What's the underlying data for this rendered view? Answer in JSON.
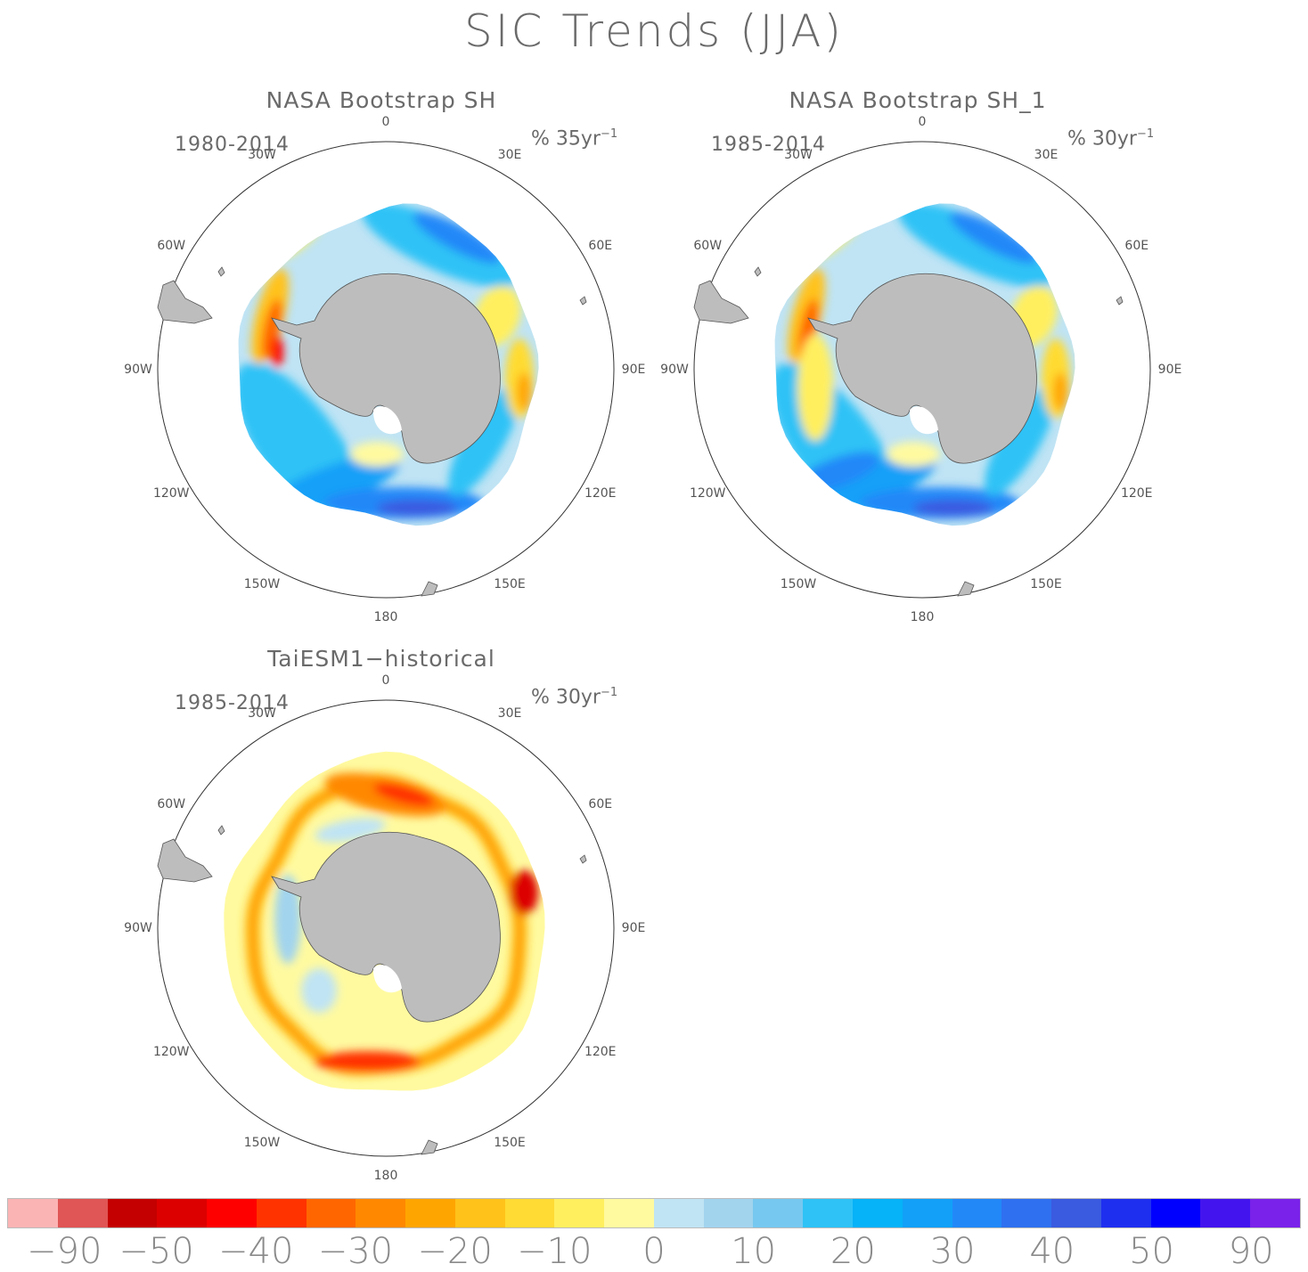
{
  "title": "SIC Trends (JJA)",
  "panels": [
    {
      "title": "NASA Bootstrap SH",
      "period": "1980-2014",
      "units_prefix": "% 35yr",
      "units_sup": "−1",
      "pattern": "obs1"
    },
    {
      "title": "NASA Bootstrap SH_1",
      "period": "1985-2014",
      "units_prefix": "% 30yr",
      "units_sup": "−1",
      "pattern": "obs2"
    },
    {
      "title": "TaiESM1−historical",
      "period": "1985-2014",
      "units_prefix": "% 30yr",
      "units_sup": "−1",
      "pattern": "model"
    }
  ],
  "longitude_labels": [
    "0",
    "30E",
    "60E",
    "90E",
    "120E",
    "150E",
    "180",
    "150W",
    "120W",
    "90W",
    "60W",
    "30W"
  ],
  "colorbar": {
    "colors": [
      "#fbb4b4",
      "#e05555",
      "#c40000",
      "#dc0000",
      "#ff0000",
      "#ff3300",
      "#ff6600",
      "#ff8800",
      "#ffa500",
      "#ffc21a",
      "#ffdb33",
      "#ffef5f",
      "#fffaa0",
      "#c0e4f4",
      "#a2d4ee",
      "#76c8f0",
      "#2ec2f6",
      "#06b2f8",
      "#12a0f8",
      "#2288f8",
      "#2f70f0",
      "#3a5ae0",
      "#1f2ff0",
      "#0000ff",
      "#4414ee",
      "#7a22ea"
    ],
    "labels": [
      "−90",
      "−50",
      "−40",
      "−30",
      "−20",
      "−10",
      "0",
      "10",
      "20",
      "30",
      "40",
      "50",
      "90"
    ]
  },
  "colors": {
    "land": "#bdbdbd",
    "land_edge": "#555555",
    "text": "#6a6a6a"
  }
}
